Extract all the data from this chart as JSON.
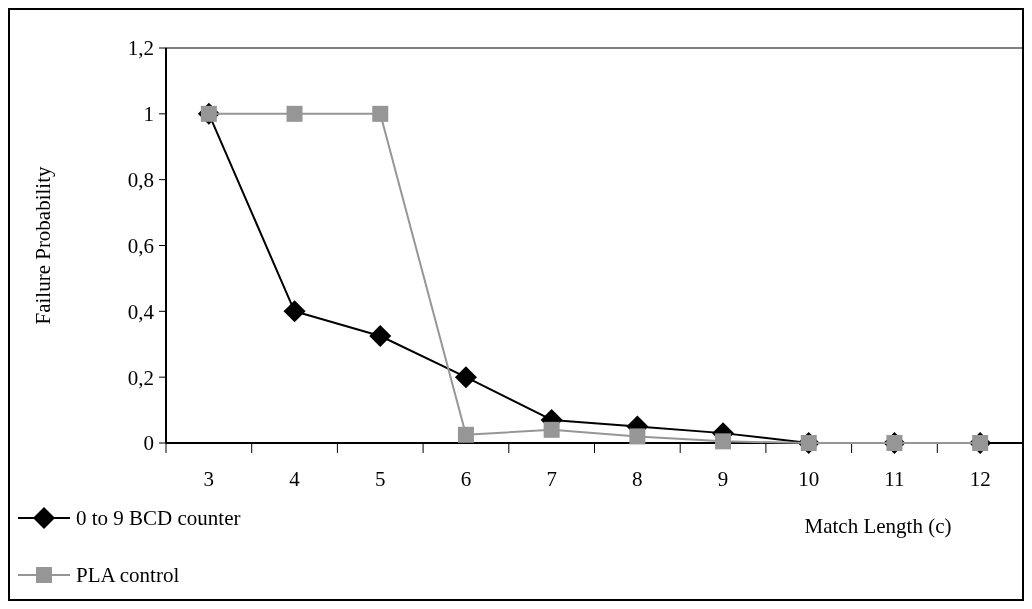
{
  "chart_data": {
    "type": "line",
    "xlabel": "Match Length (c)",
    "ylabel": "Failure Probability",
    "categories": [
      "3",
      "4",
      "5",
      "6",
      "7",
      "8",
      "9",
      "10",
      "11",
      "12"
    ],
    "series": [
      {
        "name": "0 to 9 BCD counter",
        "color": "#000000",
        "marker": "diamond",
        "values": [
          1,
          0.4,
          0.325,
          0.2,
          0.07,
          0.05,
          0.03,
          0,
          0,
          0
        ]
      },
      {
        "name": "PLA control",
        "color": "#969696",
        "marker": "square",
        "values": [
          1,
          1,
          1,
          0.025,
          0.04,
          0.02,
          0.005,
          0,
          0,
          0
        ]
      }
    ],
    "ylim": [
      0,
      1.2
    ],
    "yticks": [
      {
        "value": 0,
        "label": "0"
      },
      {
        "value": 0.2,
        "label": "0,2"
      },
      {
        "value": 0.4,
        "label": "0,4"
      },
      {
        "value": 0.6,
        "label": "0,6"
      },
      {
        "value": 0.8,
        "label": "0,8"
      },
      {
        "value": 1,
        "label": "1"
      },
      {
        "value": 1.2,
        "label": "1,2"
      }
    ],
    "grid": false,
    "legend": "bottom left"
  }
}
